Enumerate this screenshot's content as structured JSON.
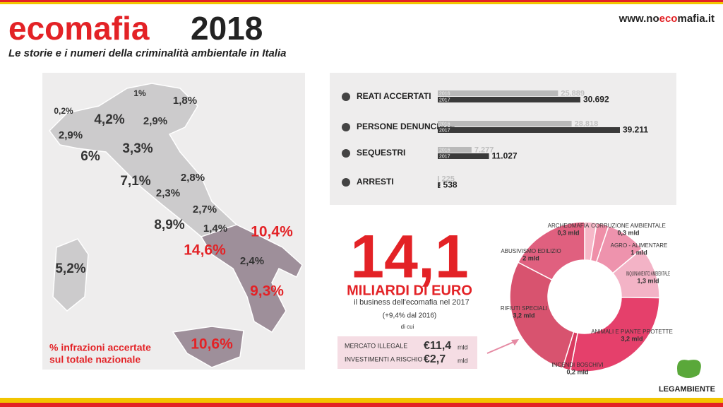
{
  "header": {
    "title_a": "ecomafia",
    "title_b": "2018",
    "subtitle": "Le storie e i numeri della criminalità ambientale in Italia",
    "url_a": "www.no",
    "url_b": "eco",
    "url_c": "mafia.it"
  },
  "map": {
    "regions": [
      {
        "label": "1%",
        "color": "#333"
      },
      {
        "label": "1,8%",
        "color": "#333"
      },
      {
        "label": "0,2%",
        "color": "#333"
      },
      {
        "label": "4,2%",
        "color": "#333"
      },
      {
        "label": "2,9%",
        "color": "#333"
      },
      {
        "label": "2,9%",
        "color": "#333"
      },
      {
        "label": "3,3%",
        "color": "#333"
      },
      {
        "label": "6%",
        "color": "#333"
      },
      {
        "label": "7,1%",
        "color": "#333"
      },
      {
        "label": "2,8%",
        "color": "#333"
      },
      {
        "label": "2,3%",
        "color": "#333"
      },
      {
        "label": "2,7%",
        "color": "#333"
      },
      {
        "label": "8,9%",
        "color": "#333"
      },
      {
        "label": "1,4%",
        "color": "#333"
      },
      {
        "label": "10,4%",
        "color": "#e32226"
      },
      {
        "label": "14,6%",
        "color": "#e32226"
      },
      {
        "label": "2,4%",
        "color": "#333"
      },
      {
        "label": "5,2%",
        "color": "#333"
      },
      {
        "label": "9,3%",
        "color": "#e32226"
      },
      {
        "label": "10,6%",
        "color": "#e32226"
      }
    ],
    "caption_1": "% infrazioni accertate",
    "caption_2": "sul totale nazionale"
  },
  "crimes": {
    "series": [
      {
        "name": "2016",
        "color": "#b9b9b9"
      },
      {
        "name": "2017",
        "color": "#3a3a3a"
      }
    ],
    "rows": [
      {
        "label": "REATI ACCERTATI",
        "values": [
          25889,
          30692
        ],
        "value_labels": [
          "25.889",
          "30.692"
        ]
      },
      {
        "label": "PERSONE DENUNCIATE",
        "values": [
          28818,
          39211
        ],
        "value_labels": [
          "28.818",
          "39.211"
        ]
      },
      {
        "label": "SEQUESTRI",
        "values": [
          7277,
          11027
        ],
        "value_labels": [
          "7.277",
          "11.027"
        ]
      },
      {
        "label": "ARRESTI",
        "values": [
          225,
          538
        ],
        "value_labels": [
          "225",
          "538"
        ]
      }
    ]
  },
  "business": {
    "amount": "14,1",
    "unit": "MILIARDI DI EURO",
    "desc": "il business dell'ecomafia nel 2017",
    "change": "(+9,4% dal 2016)",
    "di_cui": "di cui",
    "items": [
      {
        "label": "MERCATO ILLEGALE",
        "value": "€11,4",
        "unit": "mld"
      },
      {
        "label": "INVESTIMENTI A RISCHIO",
        "value": "€2,7",
        "unit": "mld"
      }
    ]
  },
  "donut": {
    "type": "pie",
    "segments": [
      {
        "name": "ARCHEOMAFIA",
        "value": 0.3,
        "value_label": "0,3 mld",
        "color": "#f6b8c8"
      },
      {
        "name": "CORRUZIONE AMBIENTALE",
        "value": 0.3,
        "value_label": "0,3 mld",
        "color": "#ef8fa8"
      },
      {
        "name": "AGRO - ALIMENTARE",
        "value": 1,
        "value_label": "1 mld",
        "color": "#ee93ad"
      },
      {
        "name": "INQUINAMENTO AMBIENTALE",
        "value": 1.3,
        "value_label": "1,3 mld",
        "color": "#f3b3c6"
      },
      {
        "name": "ANIMALI E PIANTE PROTETTE",
        "value": 3.2,
        "value_label": "3,2 mld",
        "color": "#e5406b"
      },
      {
        "name": "INCENDI BOSCHIVI",
        "value": 0.2,
        "value_label": "0,2 mld",
        "color": "#d93b60"
      },
      {
        "name": "RIFIUTI SPECIALI",
        "value": 3.2,
        "value_label": "3,2 mld",
        "color": "#d8536f"
      },
      {
        "name": "ABUSIVISMO EDILIZIO",
        "value": 2,
        "value_label": "2 mld",
        "color": "#e0607f"
      }
    ]
  },
  "footer": {
    "logo": "LEGAMBIENTE"
  }
}
